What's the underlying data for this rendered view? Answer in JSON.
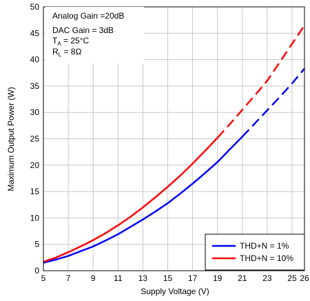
{
  "chart_data": {
    "type": "line",
    "xlabel": "Supply Voltage (V)",
    "ylabel": "Maximum Output Power (W)",
    "xlim": [
      5,
      26
    ],
    "ylim": [
      0,
      50
    ],
    "x_ticks": [
      5,
      7,
      9,
      11,
      13,
      15,
      17,
      19,
      21,
      23,
      25,
      26
    ],
    "x_tick_labels": [
      "5",
      "7",
      "9",
      "11",
      "13",
      "15",
      "17",
      "19",
      "21",
      "23",
      "25",
      "26"
    ],
    "y_ticks": [
      0,
      5,
      10,
      15,
      20,
      25,
      30,
      35,
      40,
      45,
      50
    ],
    "y_tick_labels": [
      "0",
      "5",
      "10",
      "15",
      "20",
      "25",
      "30",
      "35",
      "40",
      "45",
      "50"
    ],
    "grid": true,
    "legend_position": "bottom-right",
    "annotations": {
      "line1": "Analog Gain =20dB",
      "line2": "DAC Gain = 3dB",
      "line3_main": "T",
      "line3_sub": "A",
      "line3_rest": " = 25°C",
      "line4_main": "R",
      "line4_sub": "L",
      "line4_rest": " = 8Ω"
    },
    "series": [
      {
        "name": "THD+N = 1%",
        "color": "#0000ff",
        "solid_until_x": 21,
        "x": [
          5,
          6,
          7,
          8,
          9,
          10,
          11,
          12,
          13,
          14,
          15,
          16,
          17,
          18,
          19,
          20,
          21,
          22,
          23,
          24,
          25,
          26
        ],
        "y": [
          1.5,
          2.1,
          2.8,
          3.7,
          4.6,
          5.7,
          6.9,
          8.3,
          9.7,
          11.2,
          12.8,
          14.6,
          16.5,
          18.5,
          20.6,
          23.0,
          25.4,
          27.9,
          30.4,
          32.9,
          35.5,
          38.3
        ]
      },
      {
        "name": "THD+N = 10%",
        "color": "#ff0000",
        "solid_until_x": 19,
        "x": [
          5,
          6,
          7,
          8,
          9,
          10,
          11,
          12,
          13,
          14,
          15,
          16,
          17,
          18,
          19,
          20,
          21,
          22,
          23,
          24,
          25,
          26
        ],
        "y": [
          1.7,
          2.5,
          3.5,
          4.6,
          5.8,
          7.1,
          8.6,
          10.2,
          12.0,
          13.9,
          15.9,
          18.0,
          20.3,
          22.7,
          25.2,
          27.8,
          30.5,
          33.2,
          36.0,
          39.5,
          43.0,
          46.5
        ]
      }
    ]
  }
}
